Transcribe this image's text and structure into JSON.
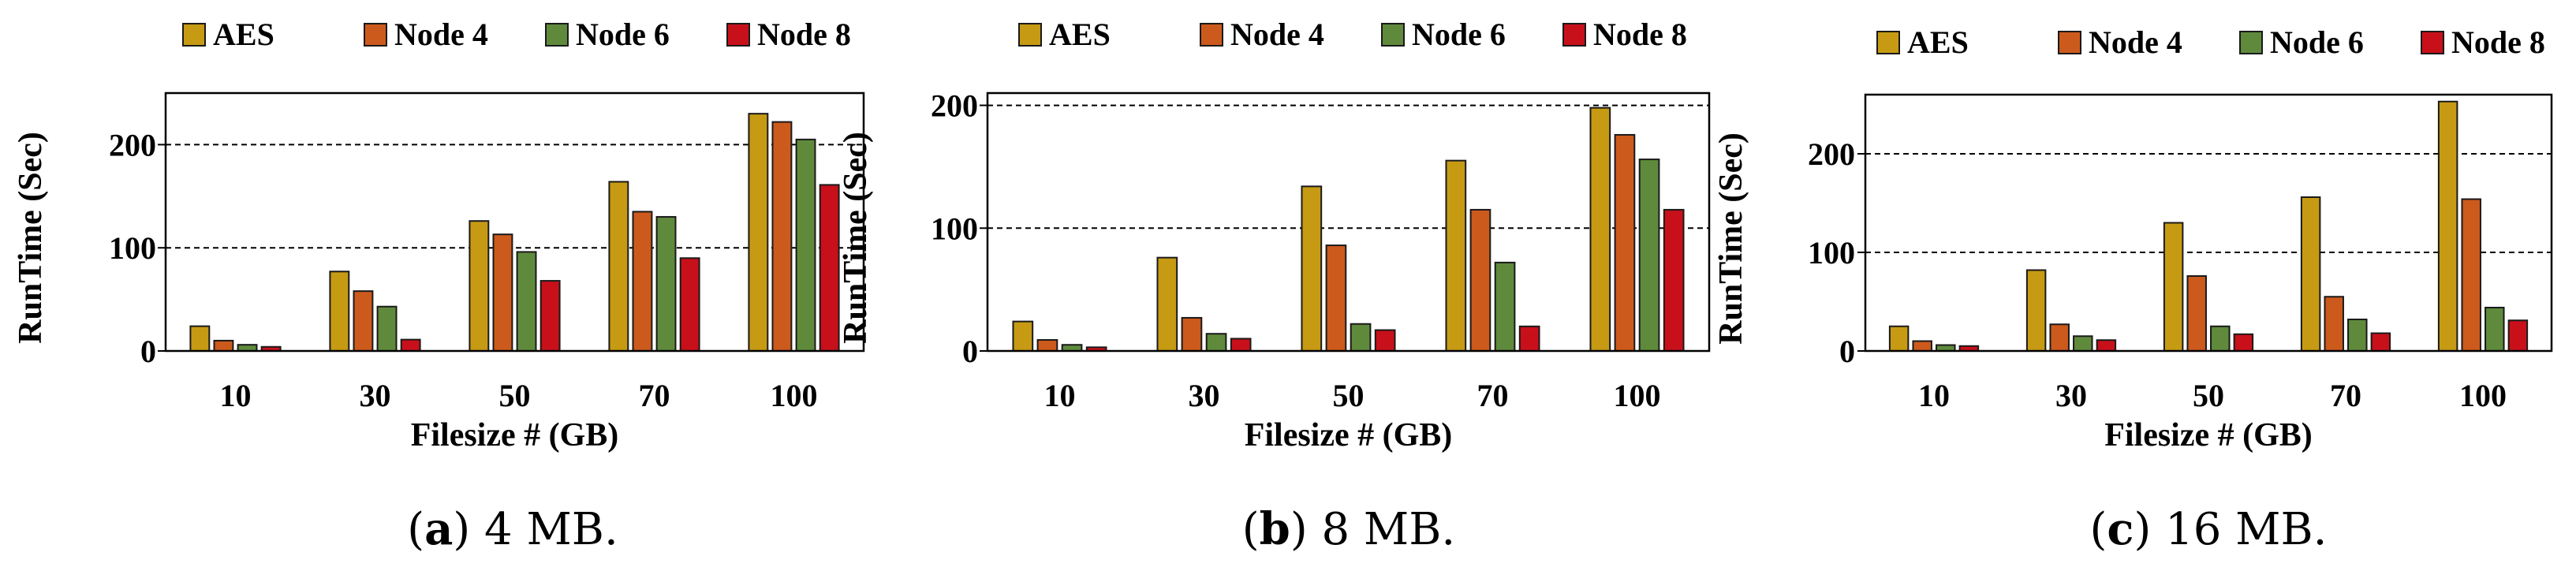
{
  "colors": {
    "AES": "#c79a14",
    "Node 4": "#cc5a1c",
    "Node 6": "#5f8a3c",
    "Node 8": "#c8101a"
  },
  "chart_data": [
    {
      "type": "bar",
      "caption_letter": "a",
      "caption_text": "4 MB.",
      "categories": [
        "10",
        "30",
        "50",
        "70",
        "100"
      ],
      "xlabel": "Filesize # (GB)",
      "ylabel": "RunTime (Sec)",
      "ylim": [
        0,
        250
      ],
      "yticks": [
        0,
        100,
        200
      ],
      "grid_lines": [
        100,
        200
      ],
      "legend_position": "top",
      "series": [
        {
          "name": "AES",
          "values": [
            24,
            77,
            126,
            164,
            230
          ]
        },
        {
          "name": "Node 4",
          "values": [
            10,
            58,
            113,
            135,
            222
          ]
        },
        {
          "name": "Node 6",
          "values": [
            6,
            43,
            96,
            130,
            205
          ]
        },
        {
          "name": "Node 8",
          "values": [
            4,
            11,
            68,
            90,
            161
          ]
        }
      ]
    },
    {
      "type": "bar",
      "caption_letter": "b",
      "caption_text": "8 MB.",
      "categories": [
        "10",
        "30",
        "50",
        "70",
        "100"
      ],
      "xlabel": "Filesize # (GB)",
      "ylabel": "RunTime (Sec)",
      "ylim": [
        0,
        210
      ],
      "yticks": [
        0,
        100,
        200
      ],
      "grid_lines": [
        100,
        200
      ],
      "legend_position": "top",
      "series": [
        {
          "name": "AES",
          "values": [
            24,
            76,
            134,
            155,
            198
          ]
        },
        {
          "name": "Node 4",
          "values": [
            9,
            27,
            86,
            115,
            176
          ]
        },
        {
          "name": "Node 6",
          "values": [
            5,
            14,
            22,
            72,
            156
          ]
        },
        {
          "name": "Node 8",
          "values": [
            3,
            10,
            17,
            20,
            115
          ]
        }
      ]
    },
    {
      "type": "bar",
      "caption_letter": "c",
      "caption_text": "16 MB.",
      "categories": [
        "10",
        "30",
        "50",
        "70",
        "100"
      ],
      "xlabel": "Filesize # (GB)",
      "ylabel": "RunTime (Sec)",
      "ylim": [
        0,
        260
      ],
      "yticks": [
        0,
        100,
        200
      ],
      "grid_lines": [
        100,
        200
      ],
      "legend_position": "top",
      "series": [
        {
          "name": "AES",
          "values": [
            25,
            82,
            130,
            156,
            253
          ]
        },
        {
          "name": "Node 4",
          "values": [
            10,
            27,
            76,
            55,
            154
          ]
        },
        {
          "name": "Node 6",
          "values": [
            6,
            15,
            25,
            32,
            44
          ]
        },
        {
          "name": "Node 8",
          "values": [
            5,
            11,
            17,
            18,
            31
          ]
        }
      ]
    }
  ]
}
